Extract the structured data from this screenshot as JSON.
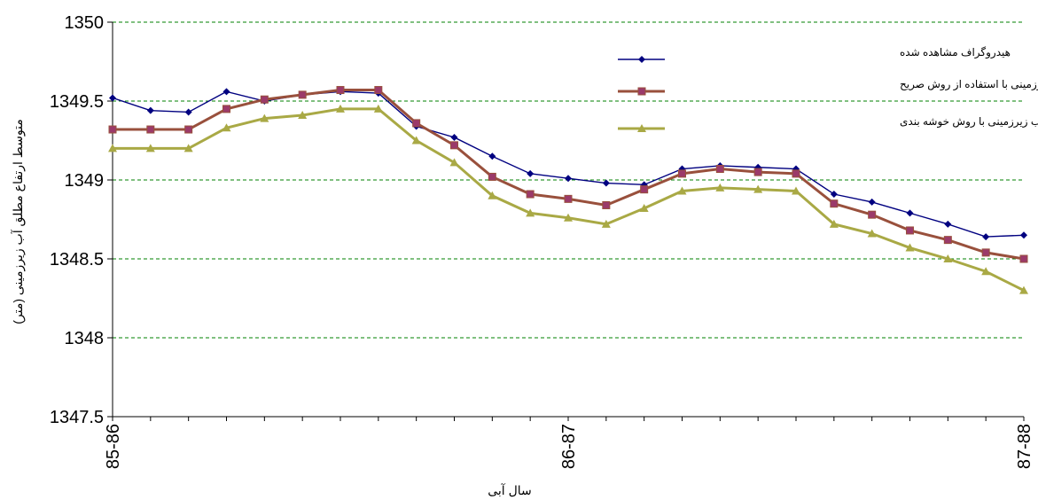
{
  "chart_data": {
    "type": "line",
    "xlabel": "سال آبی",
    "ylabel": "متوسط ارتفاع مطلق آب زیرزمینی (متر)",
    "ylim": [
      1347.5,
      1350
    ],
    "yticks": [
      "1347.5",
      "1348",
      "1348.5",
      "1349",
      "1349.5",
      "1350"
    ],
    "x_tick_labels": [
      {
        "index": 0,
        "label": "85-86"
      },
      {
        "index": 12,
        "label": "86-87"
      },
      {
        "index": 24,
        "label": "87-88"
      }
    ],
    "grid": "horizontal dashed",
    "legend_position": "top-right",
    "series": [
      {
        "name": "هیدروگراف مشاهده شده",
        "color": "#000080",
        "marker": "diamond",
        "values": [
          1349.52,
          1349.44,
          1349.43,
          1349.56,
          1349.5,
          1349.54,
          1349.56,
          1349.55,
          1349.34,
          1349.27,
          1349.15,
          1349.04,
          1349.01,
          1348.98,
          1348.97,
          1349.07,
          1349.09,
          1349.08,
          1349.07,
          1348.91,
          1348.86,
          1348.79,
          1348.72,
          1348.64,
          1348.65
        ]
      },
      {
        "name": "هیدروگراف آب زیرزمینی با استفاده از روش صریح",
        "color": "#99503C",
        "marker": "square",
        "values": [
          1349.32,
          1349.32,
          1349.32,
          1349.45,
          1349.51,
          1349.54,
          1349.57,
          1349.57,
          1349.36,
          1349.22,
          1349.02,
          1348.91,
          1348.88,
          1348.84,
          1348.94,
          1349.04,
          1349.07,
          1349.05,
          1349.04,
          1348.85,
          1348.78,
          1348.68,
          1348.62,
          1348.54,
          1348.5
        ]
      },
      {
        "name": "هیدروگراف آب زیرزمینی با روش خوشه بندی",
        "color": "#A9A945",
        "marker": "triangle",
        "values": [
          1349.2,
          1349.2,
          1349.2,
          1349.33,
          1349.39,
          1349.41,
          1349.45,
          1349.45,
          1349.25,
          1349.11,
          1348.9,
          1348.79,
          1348.76,
          1348.72,
          1348.82,
          1348.93,
          1348.95,
          1348.94,
          1348.93,
          1348.72,
          1348.66,
          1348.57,
          1348.5,
          1348.42,
          1348.3
        ]
      }
    ]
  }
}
